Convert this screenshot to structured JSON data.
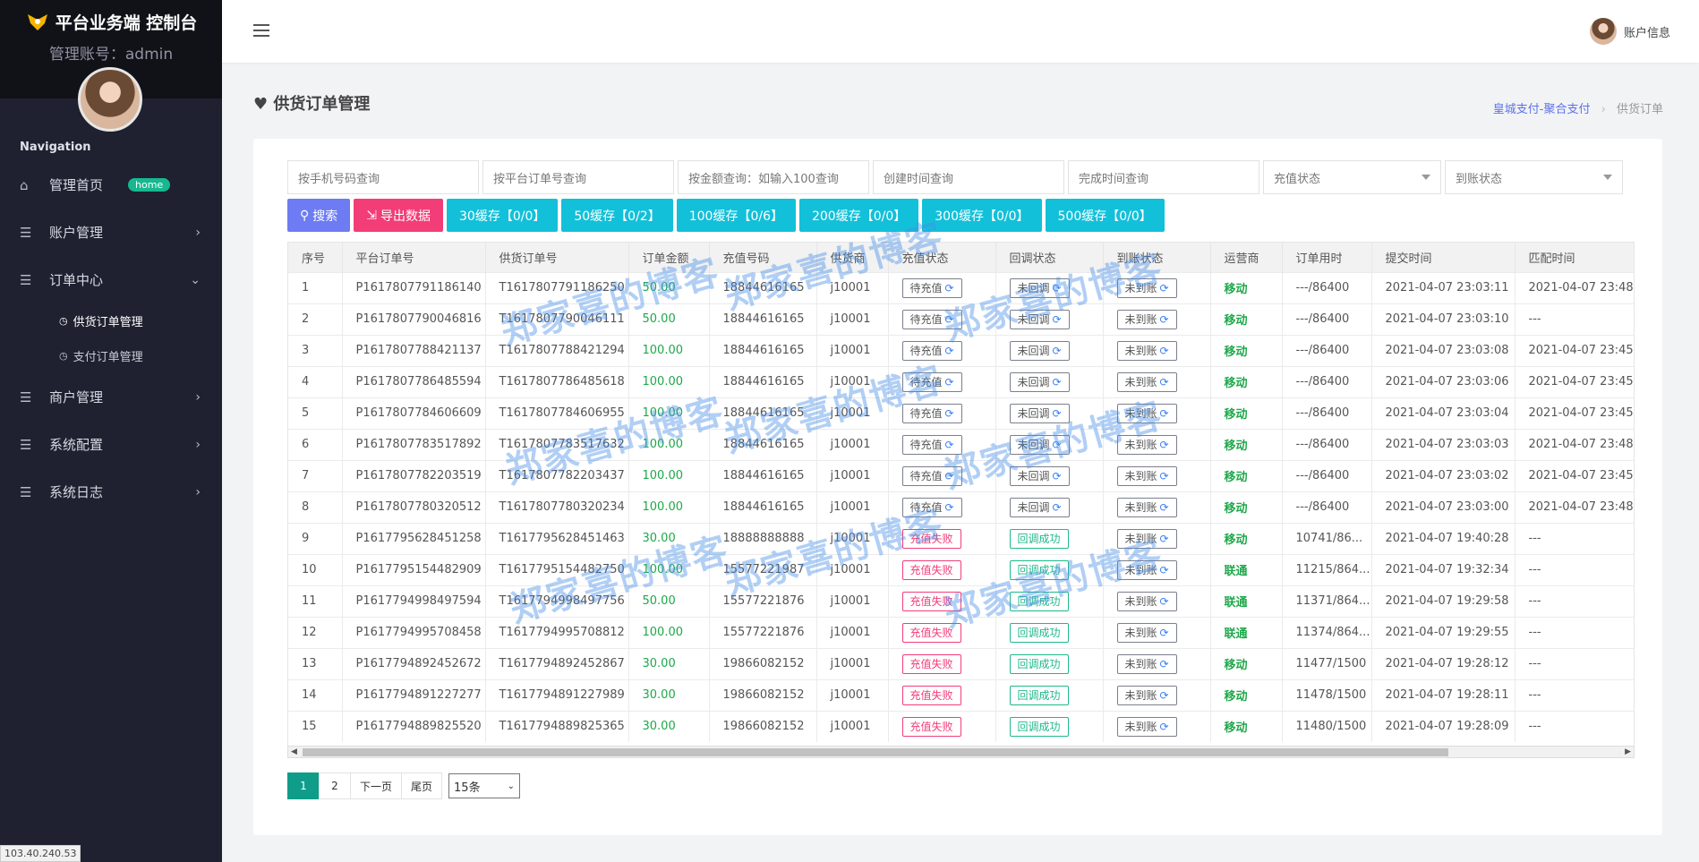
{
  "brand": {
    "title": "平台业务端 控制台",
    "admin_line": "管理账号：admin"
  },
  "nav": {
    "heading": "Navigation",
    "items": [
      {
        "label": "管理首页",
        "icon": "home-icon",
        "badge": "home"
      },
      {
        "label": "账户管理",
        "icon": "list-icon"
      },
      {
        "label": "订单中心",
        "icon": "list-icon",
        "expanded": true
      }
    ],
    "sub_items": [
      {
        "label": "供货订单管理"
      },
      {
        "label": "支付订单管理"
      }
    ],
    "items_after": [
      {
        "label": "商户管理",
        "icon": "list-icon"
      },
      {
        "label": "系统配置",
        "icon": "list-icon"
      },
      {
        "label": "系统日志",
        "icon": "list-icon"
      }
    ]
  },
  "ip_label": "103.40.240.53",
  "header": {
    "account_label": "账户信息"
  },
  "page": {
    "title": "供货订单管理",
    "breadcrumb": {
      "link": "皇城支付-聚合支付",
      "current": "供货订单"
    }
  },
  "filters": {
    "phone": "按手机号码查询",
    "platform_order": "按平台订单号查询",
    "amount": "按金额查询：如输入100查询",
    "created": "创建时间查询",
    "finished": "完成时间查询",
    "recharge_status": "充值状态",
    "arrival_status": "到账状态"
  },
  "actions": {
    "search": "搜索",
    "export": "导出数据",
    "cache": [
      "30缓存【0/0】",
      "50缓存【0/2】",
      "100缓存【0/6】",
      "200缓存【0/0】",
      "300缓存【0/0】",
      "500缓存【0/0】"
    ]
  },
  "table": {
    "columns": [
      "序号",
      "平台订单号",
      "供货订单号",
      "订单金额",
      "充值号码",
      "供货商",
      "充值状态",
      "回调状态",
      "到账状态",
      "运营商",
      "订单用时",
      "提交时间",
      "匹配时间"
    ],
    "rows": [
      [
        "1",
        "P1617807791186140",
        "T1617807791186250",
        "50.00",
        "18844616165",
        "j10001",
        "待充值",
        "未回调",
        "未到账",
        "移动",
        "---/86400",
        "2021-04-07 23:03:11",
        "2021-04-07 23:48"
      ],
      [
        "2",
        "P1617807790046816",
        "T1617807790046111",
        "50.00",
        "18844616165",
        "j10001",
        "待充值",
        "未回调",
        "未到账",
        "移动",
        "---/86400",
        "2021-04-07 23:03:10",
        "---"
      ],
      [
        "3",
        "P1617807788421137",
        "T1617807788421294",
        "100.00",
        "18844616165",
        "j10001",
        "待充值",
        "未回调",
        "未到账",
        "移动",
        "---/86400",
        "2021-04-07 23:03:08",
        "2021-04-07 23:45"
      ],
      [
        "4",
        "P1617807786485594",
        "T1617807786485618",
        "100.00",
        "18844616165",
        "j10001",
        "待充值",
        "未回调",
        "未到账",
        "移动",
        "---/86400",
        "2021-04-07 23:03:06",
        "2021-04-07 23:45"
      ],
      [
        "5",
        "P1617807784606609",
        "T1617807784606955",
        "100.00",
        "18844616165",
        "j10001",
        "待充值",
        "未回调",
        "未到账",
        "移动",
        "---/86400",
        "2021-04-07 23:03:04",
        "2021-04-07 23:45"
      ],
      [
        "6",
        "P1617807783517892",
        "T1617807783517632",
        "100.00",
        "18844616165",
        "j10001",
        "待充值",
        "未回调",
        "未到账",
        "移动",
        "---/86400",
        "2021-04-07 23:03:03",
        "2021-04-07 23:48"
      ],
      [
        "7",
        "P1617807782203519",
        "T1617807782203437",
        "100.00",
        "18844616165",
        "j10001",
        "待充值",
        "未回调",
        "未到账",
        "移动",
        "---/86400",
        "2021-04-07 23:03:02",
        "2021-04-07 23:45"
      ],
      [
        "8",
        "P1617807780320512",
        "T1617807780320234",
        "100.00",
        "18844616165",
        "j10001",
        "待充值",
        "未回调",
        "未到账",
        "移动",
        "---/86400",
        "2021-04-07 23:03:00",
        "2021-04-07 23:48"
      ],
      [
        "9",
        "P1617795628451258",
        "T1617795628451463",
        "30.00",
        "18888888888",
        "j10001",
        "充值失败",
        "回调成功",
        "未到账",
        "移动",
        "10741/86...",
        "2021-04-07 19:40:28",
        "---"
      ],
      [
        "10",
        "P1617795154482909",
        "T1617795154482750",
        "100.00",
        "15577221987",
        "j10001",
        "充值失败",
        "回调成功",
        "未到账",
        "联通",
        "11215/864...",
        "2021-04-07 19:32:34",
        "---"
      ],
      [
        "11",
        "P1617794998497594",
        "T1617794998497756",
        "50.00",
        "15577221876",
        "j10001",
        "充值失败",
        "回调成功",
        "未到账",
        "联通",
        "11371/864...",
        "2021-04-07 19:29:58",
        "---"
      ],
      [
        "12",
        "P1617794995708458",
        "T1617794995708812",
        "100.00",
        "15577221876",
        "j10001",
        "充值失败",
        "回调成功",
        "未到账",
        "联通",
        "11374/864...",
        "2021-04-07 19:29:55",
        "---"
      ],
      [
        "13",
        "P1617794892452672",
        "T1617794892452867",
        "30.00",
        "19866082152",
        "j10001",
        "充值失败",
        "回调成功",
        "未到账",
        "移动",
        "11477/1500",
        "2021-04-07 19:28:12",
        "---"
      ],
      [
        "14",
        "P1617794891227277",
        "T1617794891227989",
        "30.00",
        "19866082152",
        "j10001",
        "充值失败",
        "回调成功",
        "未到账",
        "移动",
        "11478/1500",
        "2021-04-07 19:28:11",
        "---"
      ],
      [
        "15",
        "P1617794889825520",
        "T1617794889825365",
        "30.00",
        "19866082152",
        "j10001",
        "充值失败",
        "回调成功",
        "未到账",
        "移动",
        "11480/1500",
        "2021-04-07 19:28:09",
        "---"
      ]
    ]
  },
  "pagination": {
    "pages": [
      "1",
      "2"
    ],
    "next": "下一页",
    "last": "尾页",
    "page_size": "15条"
  },
  "watermark": "郑家喜的博客",
  "colors": {
    "sidebar": "#1f2130",
    "accent_search": "#6d7cf2",
    "accent_export": "#f23d78",
    "accent_cache": "#13c0d9",
    "success": "#1ea84a"
  }
}
